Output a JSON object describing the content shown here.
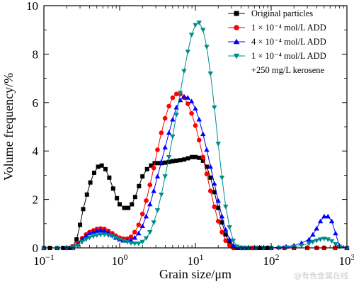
{
  "watermark": "@有色金属在线",
  "chart_data": {
    "type": "line",
    "xscale": "log",
    "xlim": [
      0.1,
      1000
    ],
    "ylim": [
      0,
      10
    ],
    "xlabel": "Grain size/μm",
    "ylabel": "Volume frequency/%",
    "xticks": [
      {
        "value": 0.1,
        "base": "10",
        "exp": "−1"
      },
      {
        "value": 1,
        "base": "10",
        "exp": "0"
      },
      {
        "value": 10,
        "base": "10",
        "exp": "1"
      },
      {
        "value": 100,
        "base": "10",
        "exp": "2"
      },
      {
        "value": 1000,
        "base": "10",
        "exp": "3"
      }
    ],
    "yticks": [
      0,
      2,
      4,
      6,
      8,
      10
    ],
    "legend_position": "top-right",
    "series": [
      {
        "name": "Original particles",
        "color": "#000000",
        "marker": "square",
        "x": [
          0.1,
          0.12,
          0.15,
          0.18,
          0.2,
          0.22,
          0.24,
          0.27,
          0.3,
          0.33,
          0.37,
          0.41,
          0.46,
          0.52,
          0.58,
          0.65,
          0.73,
          0.82,
          0.92,
          1.0,
          1.15,
          1.3,
          1.45,
          1.6,
          1.8,
          2.0,
          2.3,
          2.6,
          2.9,
          3.2,
          3.6,
          4.0,
          4.5,
          5.0,
          5.6,
          6.3,
          7.1,
          8.0,
          9.0,
          10.0,
          11.2,
          12.6,
          14.1,
          15.8,
          17.8,
          20.0,
          22.4,
          25.1,
          28.2,
          31.6,
          35.5,
          39.8,
          44.7,
          50.1,
          56.2,
          63.1,
          70.8,
          79.4,
          89.1,
          100,
          150,
          200,
          300,
          400,
          500,
          700,
          1000
        ],
        "y": [
          0,
          0,
          0,
          0,
          0,
          0,
          0.05,
          0.35,
          0.95,
          1.6,
          2.2,
          2.7,
          3.1,
          3.35,
          3.4,
          3.25,
          2.9,
          2.45,
          2.05,
          1.8,
          1.65,
          1.65,
          1.8,
          2.1,
          2.55,
          2.95,
          3.25,
          3.4,
          3.5,
          3.5,
          3.5,
          3.52,
          3.55,
          3.58,
          3.6,
          3.62,
          3.65,
          3.7,
          3.75,
          3.75,
          3.72,
          3.6,
          3.35,
          2.9,
          2.3,
          1.65,
          1.05,
          0.55,
          0.2,
          0.05,
          0,
          0,
          0,
          0,
          0,
          0,
          0,
          0,
          0,
          0,
          0,
          0,
          0,
          0,
          0,
          0,
          0
        ]
      },
      {
        "name": "1 × 10⁻⁴ mol/L ADD",
        "color": "#ff0000",
        "marker": "circle",
        "x": [
          0.1,
          0.15,
          0.2,
          0.24,
          0.28,
          0.32,
          0.36,
          0.4,
          0.45,
          0.5,
          0.56,
          0.63,
          0.71,
          0.8,
          0.89,
          1.0,
          1.12,
          1.26,
          1.41,
          1.58,
          1.78,
          2.0,
          2.24,
          2.51,
          2.82,
          3.16,
          3.55,
          3.98,
          4.47,
          5.01,
          5.62,
          6.31,
          7.08,
          7.94,
          8.91,
          10.0,
          11.2,
          12.6,
          14.1,
          15.8,
          17.8,
          20.0,
          22.4,
          25.1,
          28.2,
          31.6,
          35.5,
          39.8,
          44.7,
          50.1,
          56.2,
          63.1,
          100,
          150,
          200,
          300,
          400,
          500,
          700,
          1000
        ],
        "y": [
          0,
          0,
          0,
          0.05,
          0.2,
          0.4,
          0.55,
          0.65,
          0.72,
          0.78,
          0.8,
          0.78,
          0.7,
          0.6,
          0.5,
          0.42,
          0.38,
          0.38,
          0.45,
          0.65,
          0.95,
          1.4,
          1.95,
          2.6,
          3.3,
          4.05,
          4.75,
          5.35,
          5.85,
          6.2,
          6.35,
          6.35,
          6.2,
          5.95,
          5.55,
          5.05,
          4.45,
          3.75,
          3.05,
          2.35,
          1.7,
          1.1,
          0.65,
          0.3,
          0.1,
          0,
          0,
          0,
          0,
          0,
          0,
          0,
          0,
          0,
          0,
          0,
          0,
          0,
          0,
          0
        ]
      },
      {
        "name": "4 × 10⁻⁴ mol/L ADD",
        "color": "#0000ff",
        "marker": "triangle-up",
        "x": [
          0.1,
          0.15,
          0.2,
          0.24,
          0.28,
          0.32,
          0.36,
          0.4,
          0.45,
          0.5,
          0.56,
          0.63,
          0.71,
          0.8,
          0.89,
          1.0,
          1.12,
          1.26,
          1.41,
          1.58,
          1.78,
          2.0,
          2.24,
          2.51,
          2.82,
          3.16,
          3.55,
          3.98,
          4.47,
          5.01,
          5.62,
          6.31,
          7.08,
          7.94,
          8.91,
          10.0,
          11.2,
          12.6,
          14.1,
          15.8,
          17.8,
          20.0,
          22.4,
          25.1,
          28.2,
          31.6,
          35.5,
          39.8,
          44.7,
          50.1,
          63.1,
          79.4,
          100,
          126,
          158,
          200,
          251,
          316,
          355,
          398,
          447,
          501,
          562,
          631,
          708,
          794,
          1000
        ],
        "y": [
          0,
          0,
          0,
          0,
          0.15,
          0.35,
          0.5,
          0.6,
          0.66,
          0.7,
          0.72,
          0.7,
          0.62,
          0.52,
          0.42,
          0.35,
          0.3,
          0.3,
          0.32,
          0.42,
          0.6,
          0.9,
          1.3,
          1.8,
          2.35,
          2.95,
          3.55,
          4.15,
          4.75,
          5.3,
          5.8,
          6.1,
          6.25,
          6.2,
          6.05,
          5.75,
          5.3,
          4.7,
          4.05,
          3.35,
          2.65,
          1.95,
          1.3,
          0.75,
          0.35,
          0.1,
          0,
          0,
          0,
          0,
          0,
          0,
          0,
          0.02,
          0.05,
          0.1,
          0.2,
          0.35,
          0.55,
          0.8,
          1.1,
          1.3,
          1.3,
          1.1,
          0.6,
          0.1,
          0
        ]
      },
      {
        "name": "1 × 10⁻⁴ mol/L ADD +250 mg/L kerosene",
        "color": "#008b8b",
        "marker": "triangle-down",
        "x": [
          0.1,
          0.15,
          0.2,
          0.24,
          0.28,
          0.32,
          0.36,
          0.4,
          0.45,
          0.5,
          0.56,
          0.63,
          0.71,
          0.8,
          0.89,
          1.0,
          1.12,
          1.26,
          1.41,
          1.58,
          1.78,
          2.0,
          2.24,
          2.51,
          2.82,
          3.16,
          3.55,
          3.98,
          4.47,
          5.01,
          5.62,
          6.31,
          7.08,
          7.94,
          8.91,
          10.0,
          11.2,
          12.6,
          14.1,
          15.8,
          17.8,
          20.0,
          22.4,
          25.1,
          28.2,
          31.6,
          35.5,
          39.8,
          44.7,
          50.1,
          63.1,
          79.4,
          100,
          126,
          158,
          200,
          251,
          316,
          355,
          398,
          447,
          501,
          562,
          631,
          708,
          794,
          1000
        ],
        "y": [
          0,
          0,
          0,
          0,
          0.1,
          0.25,
          0.35,
          0.42,
          0.48,
          0.52,
          0.55,
          0.55,
          0.52,
          0.48,
          0.42,
          0.36,
          0.3,
          0.25,
          0.2,
          0.18,
          0.18,
          0.25,
          0.4,
          0.65,
          1.05,
          1.55,
          2.2,
          2.95,
          3.75,
          4.6,
          5.5,
          6.4,
          7.3,
          8.1,
          8.8,
          9.2,
          9.3,
          9.0,
          8.3,
          7.2,
          5.8,
          4.3,
          2.9,
          1.7,
          0.85,
          0.3,
          0.05,
          0,
          0,
          0,
          0,
          0,
          0,
          0,
          0.02,
          0.05,
          0.1,
          0.18,
          0.25,
          0.3,
          0.35,
          0.38,
          0.35,
          0.28,
          0.15,
          0.05,
          0
        ]
      }
    ]
  }
}
